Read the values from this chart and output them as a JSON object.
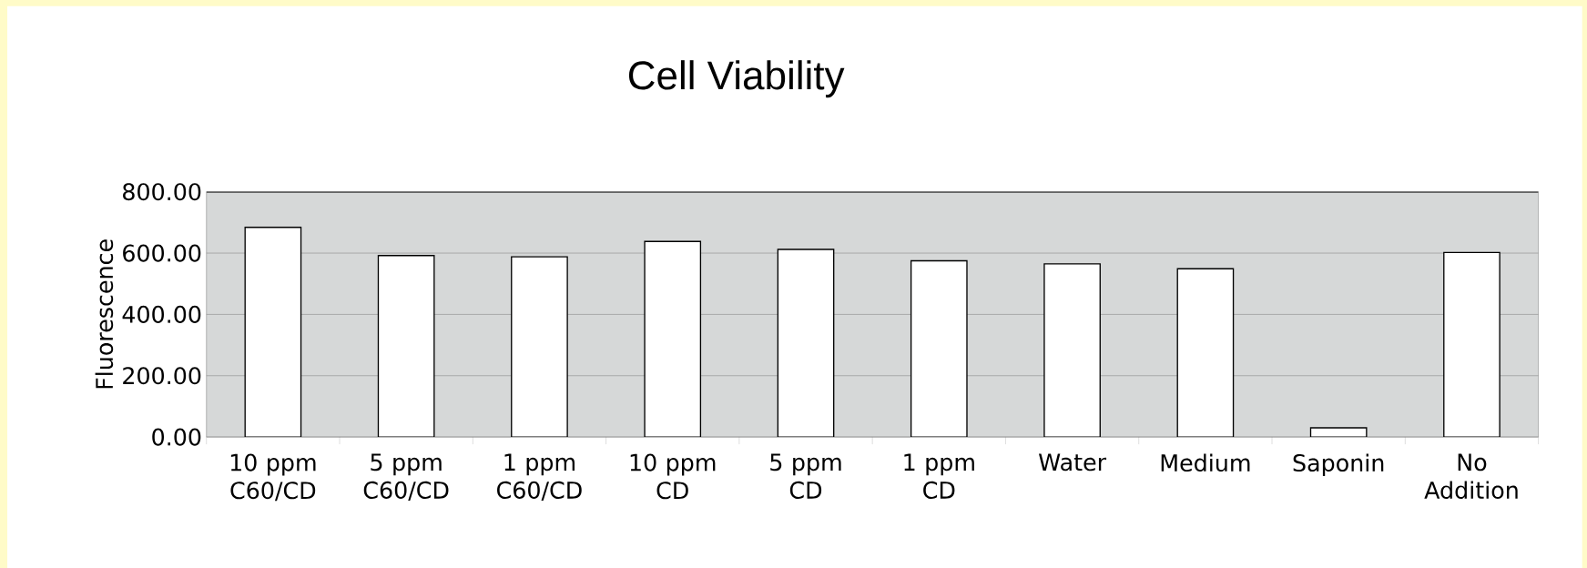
{
  "chart_data": {
    "type": "bar",
    "title": "Cell Viability",
    "ylabel": "Fluorescence",
    "categories": [
      "10 ppm C60/CD",
      "5 ppm C60/CD",
      "1 ppm C60/CD",
      "10 ppm CD",
      "5 ppm CD",
      "1 ppm CD",
      "Water",
      "Medium",
      "Saponin",
      "No Addition"
    ],
    "values": [
      684,
      592,
      588,
      638,
      612,
      575,
      565,
      549,
      30,
      602
    ],
    "color": "#ffffff",
    "ylim": [
      0,
      800
    ],
    "yticks": [
      {
        "value": 0,
        "label": "0.00"
      },
      {
        "value": 200,
        "label": "200.00"
      },
      {
        "value": 400,
        "label": "400.00"
      },
      {
        "value": 600,
        "label": "600.00"
      },
      {
        "value": 800,
        "label": "800.00"
      }
    ],
    "grid": "y"
  }
}
